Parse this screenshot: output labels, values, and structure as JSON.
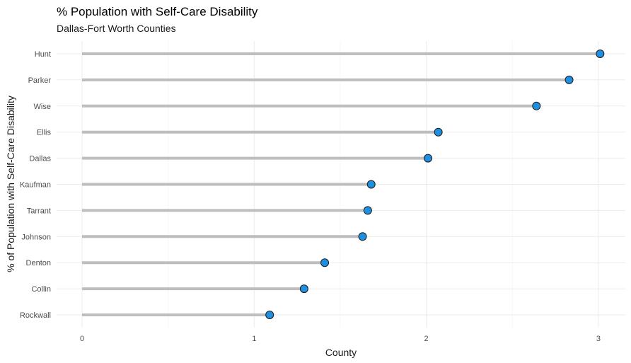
{
  "chart_data": {
    "type": "lollipop",
    "title": "% Population with Self-Care Disability",
    "subtitle": "Dallas-Fort Worth Counties",
    "xlabel": "County",
    "ylabel": "% of Population with Self-Care Disability",
    "xlim": [
      0,
      3.05
    ],
    "x_ticks": [
      0,
      1,
      2,
      3
    ],
    "grid": true,
    "colors": {
      "point_fill": "#1f8fe0",
      "point_stroke": "#1a1a1a",
      "stem": "#bebebe"
    },
    "categories": [
      "Hunt",
      "Parker",
      "Wise",
      "Ellis",
      "Dallas",
      "Kaufman",
      "Tarrant",
      "Johnson",
      "Denton",
      "Collin",
      "Rockwall"
    ],
    "values": [
      3.01,
      2.83,
      2.64,
      2.07,
      2.01,
      1.68,
      1.66,
      1.63,
      1.41,
      1.29,
      1.09
    ]
  }
}
